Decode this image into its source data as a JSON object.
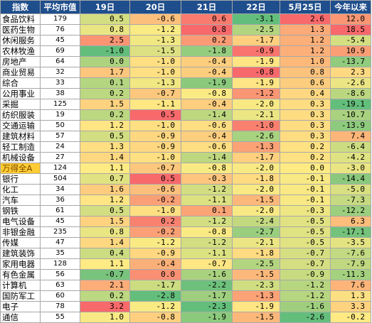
{
  "chart_data": {
    "type": "heatmap",
    "columns": [
      "指数",
      "平均市值",
      "19日",
      "20日",
      "21日",
      "22日",
      "5月25日",
      "今年以来"
    ],
    "highlight_row": "万得全A",
    "colors": {
      "header_bg": "#1f4e8c",
      "header_text": "#ffffff",
      "low": "#63be7b",
      "mid": "#ffeb84",
      "high": "#f8696b",
      "highlight": "#ffcc33"
    },
    "rows": [
      {
        "name": "食品饮料",
        "avg": 179,
        "values": [
          0.5,
          -0.6,
          0.6,
          -3.1,
          2.6,
          12.0
        ]
      },
      {
        "name": "医药生物",
        "avg": 76,
        "values": [
          0.8,
          -1.2,
          0.8,
          -2.5,
          1.3,
          18.5
        ]
      },
      {
        "name": "休闲服务",
        "avg": 45,
        "values": [
          2.5,
          -1.3,
          0.2,
          -1.7,
          1.2,
          -5.4
        ]
      },
      {
        "name": "农林牧渔",
        "avg": 69,
        "values": [
          -1.0,
          -1.5,
          -1.8,
          -0.9,
          1.2,
          10.9
        ]
      },
      {
        "name": "房地产",
        "avg": 64,
        "values": [
          0.0,
          -1.0,
          -0.4,
          -1.9,
          1.0,
          -13.7
        ]
      },
      {
        "name": "商业贸易",
        "avg": 32,
        "values": [
          1.7,
          -1.0,
          -0.4,
          -0.8,
          0.8,
          2.3
        ]
      },
      {
        "name": "综合",
        "avg": 33,
        "values": [
          0.1,
          -1.3,
          -1.9,
          -1.9,
          0.6,
          -2.6
        ]
      },
      {
        "name": "公用事业",
        "avg": 38,
        "values": [
          0.2,
          -0.7,
          -0.8,
          -1.2,
          0.4,
          -8.6
        ]
      },
      {
        "name": "采掘",
        "avg": 125,
        "values": [
          1.5,
          -1.1,
          -0.4,
          -2.0,
          0.3,
          -19.1
        ]
      },
      {
        "name": "纺织服装",
        "avg": 19,
        "values": [
          0.2,
          0.5,
          -1.4,
          -2.1,
          0.3,
          -10.7
        ]
      },
      {
        "name": "交通运输",
        "avg": 50,
        "values": [
          1.2,
          -1.0,
          -0.6,
          -1.0,
          0.3,
          -13.9
        ]
      },
      {
        "name": "建筑材料",
        "avg": 57,
        "values": [
          0.5,
          -0.9,
          -0.4,
          -2.6,
          0.3,
          7.4
        ]
      },
      {
        "name": "轻工制造",
        "avg": 24,
        "values": [
          1.3,
          -0.9,
          -0.6,
          -1.3,
          0.2,
          -6.4
        ]
      },
      {
        "name": "机械设备",
        "avg": 27,
        "values": [
          1.4,
          -1.0,
          -1.4,
          -1.7,
          0.2,
          -4.2
        ]
      },
      {
        "name": "万得全A",
        "avg": 124,
        "values": [
          1.1,
          -0.7,
          -0.8,
          -2.0,
          0.0,
          -3.0
        ]
      },
      {
        "name": "银行",
        "avg": 504,
        "values": [
          0.7,
          0.5,
          -0.3,
          -1.8,
          -0.1,
          -14.4
        ]
      },
      {
        "name": "化工",
        "avg": 34,
        "values": [
          1.6,
          -0.6,
          -1.2,
          -2.0,
          -0.1,
          -5.0
        ]
      },
      {
        "name": "汽车",
        "avg": 36,
        "values": [
          1.2,
          -0.2,
          -1.1,
          -1.5,
          -0.1,
          -7.3
        ]
      },
      {
        "name": "钢铁",
        "avg": 61,
        "values": [
          0.5,
          -1.0,
          0.1,
          -2.0,
          -0.3,
          -12.2
        ]
      },
      {
        "name": "电气设备",
        "avg": 45,
        "values": [
          1.5,
          0.2,
          -1.2,
          -2.4,
          -0.5,
          6.3
        ]
      },
      {
        "name": "非银金融",
        "avg": 235,
        "values": [
          0.8,
          -0.2,
          -0.8,
          -2.7,
          -0.5,
          -17.1
        ]
      },
      {
        "name": "传媒",
        "avg": 47,
        "values": [
          1.4,
          -1.2,
          -1.2,
          -2.1,
          -0.5,
          -3.5
        ]
      },
      {
        "name": "建筑装饰",
        "avg": 35,
        "values": [
          0.4,
          -0.9,
          -1.1,
          -1.8,
          -0.7,
          -7.6
        ]
      },
      {
        "name": "家用电器",
        "avg": 128,
        "values": [
          1.1,
          -0.4,
          -0.7,
          -2.5,
          -0.7,
          -7.9
        ]
      },
      {
        "name": "有色金属",
        "avg": 56,
        "values": [
          -0.7,
          0.0,
          -1.6,
          -1.5,
          -0.9,
          -11.3
        ]
      },
      {
        "name": "计算机",
        "avg": 63,
        "values": [
          2.1,
          -1.7,
          -2.2,
          -2.3,
          -1.2,
          7.6
        ]
      },
      {
        "name": "国防军工",
        "avg": 60,
        "values": [
          0.2,
          -2.8,
          -1.7,
          -1.3,
          -1.2,
          1.3
        ]
      },
      {
        "name": "电子",
        "avg": 78,
        "values": [
          3.2,
          -1.2,
          -2.3,
          -1.9,
          -1.6,
          3.3
        ]
      },
      {
        "name": "通信",
        "avg": 55,
        "values": [
          1.0,
          -0.8,
          -1.9,
          -1.5,
          -2.6,
          -0.2
        ]
      }
    ]
  }
}
